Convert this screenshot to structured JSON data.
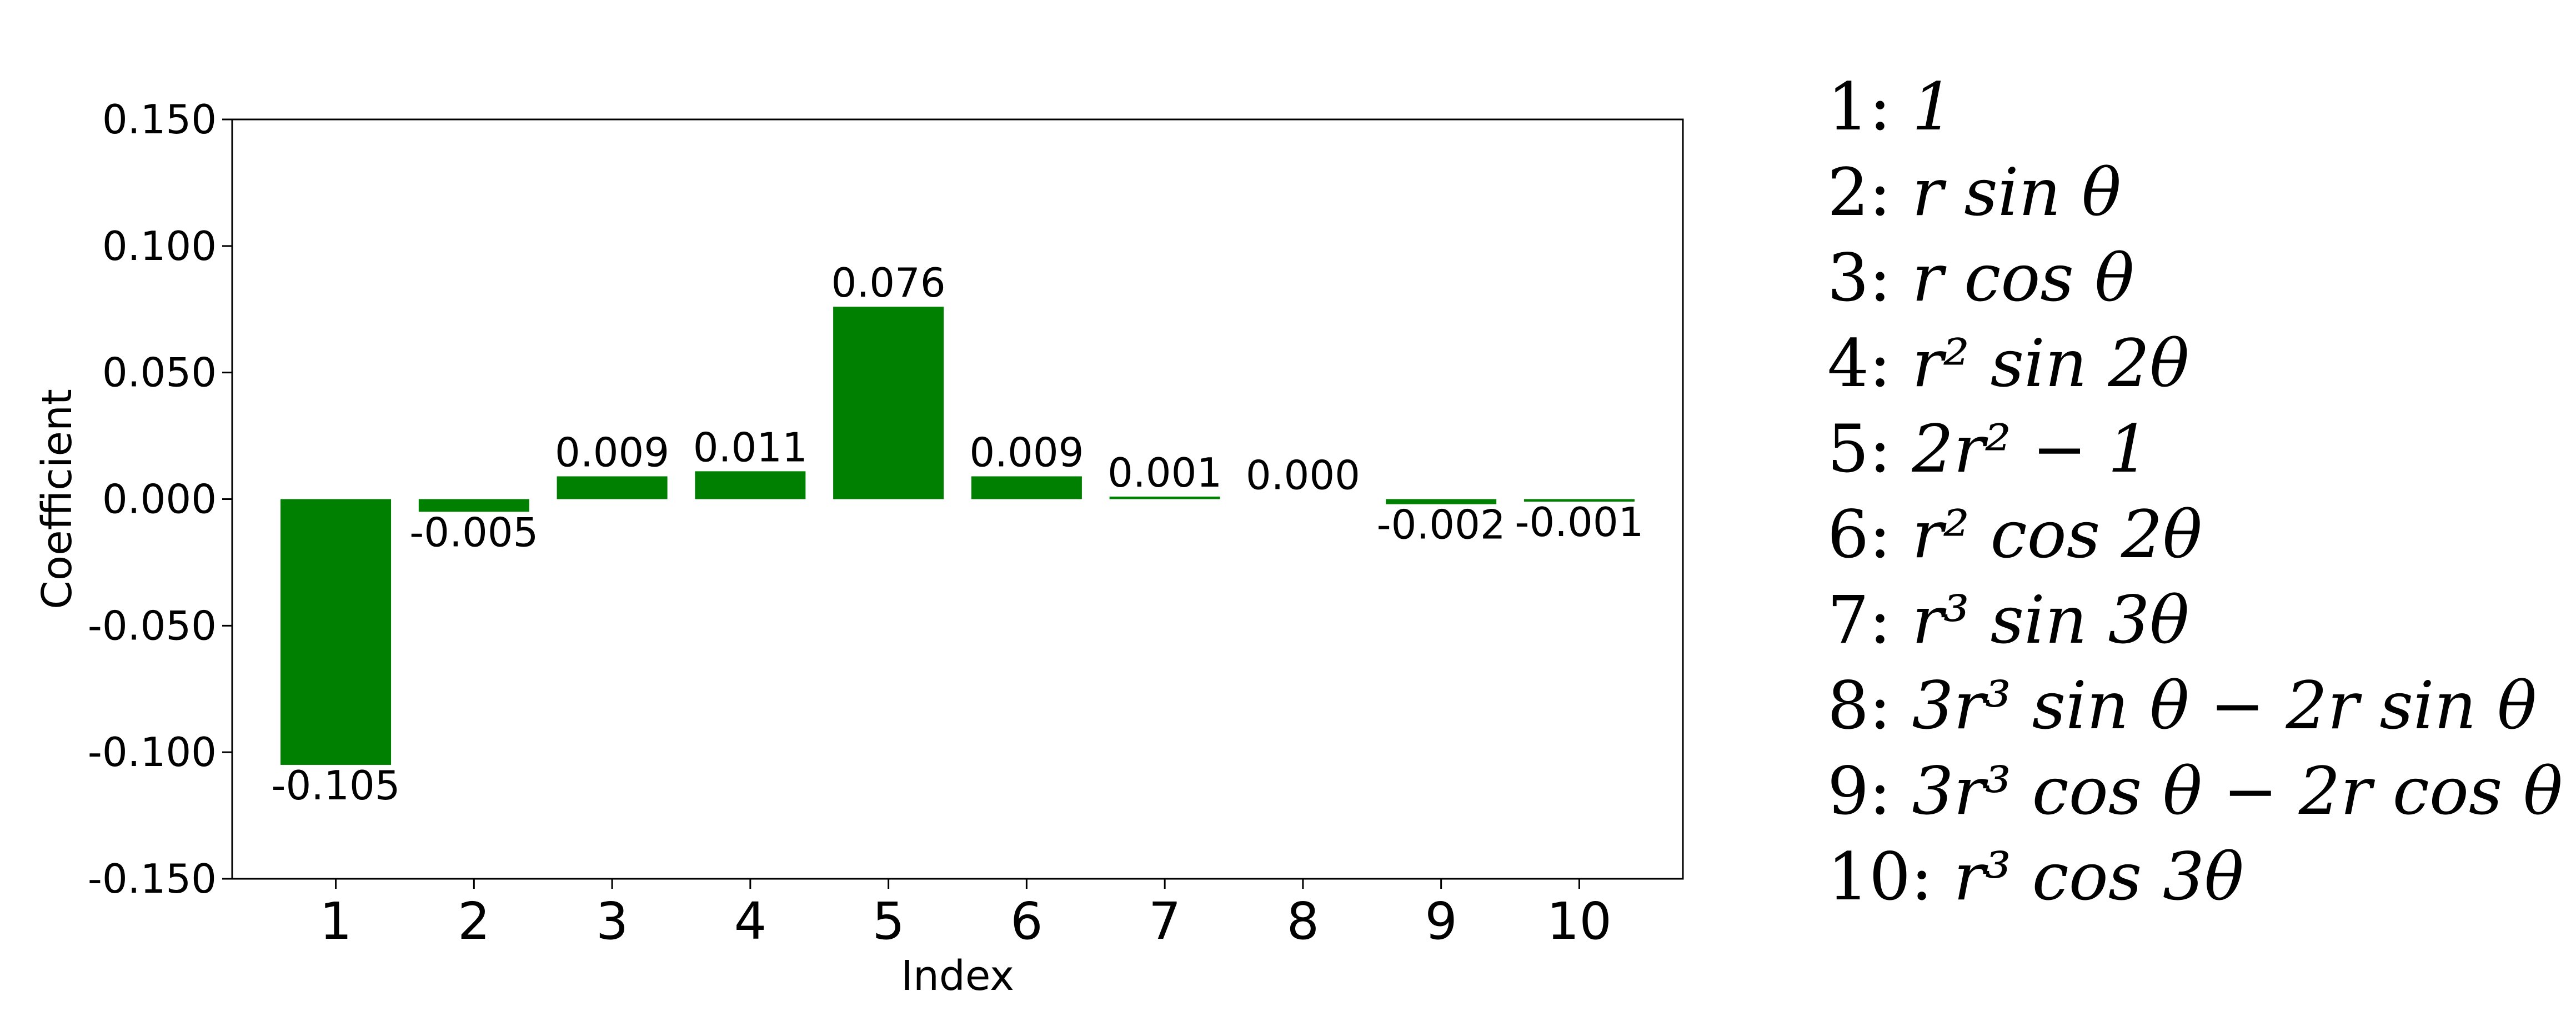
{
  "chart_data": {
    "type": "bar",
    "categories": [
      "1",
      "2",
      "3",
      "4",
      "5",
      "6",
      "7",
      "8",
      "9",
      "10"
    ],
    "values": [
      -0.105,
      -0.005,
      0.009,
      0.011,
      0.076,
      0.009,
      0.001,
      0.0,
      -0.002,
      -0.001
    ],
    "value_labels": [
      "-0.105",
      "-0.005",
      "0.009",
      "0.011",
      "0.076",
      "0.009",
      "0.001",
      "0.000",
      "-0.002",
      "-0.001"
    ],
    "xlabel": "Index",
    "ylabel": "Coefficient",
    "ylim": [
      -0.15,
      0.15
    ],
    "yticks": [
      0.15,
      0.1,
      0.05,
      0.0,
      -0.05,
      -0.1,
      -0.15
    ],
    "ytick_labels": [
      "0.150",
      "0.100",
      "0.050",
      "0.000",
      "-0.050",
      "-0.100",
      "-0.150"
    ],
    "grid": false,
    "bar_color": "#008000",
    "legend_placement": "right",
    "legend": [
      {
        "index": "1:",
        "formula": "1"
      },
      {
        "index": "2:",
        "formula": "r sin θ"
      },
      {
        "index": "3:",
        "formula": "r cos θ"
      },
      {
        "index": "4:",
        "formula": "r² sin 2θ"
      },
      {
        "index": "5:",
        "formula": "2r² − 1"
      },
      {
        "index": "6:",
        "formula": "r² cos 2θ"
      },
      {
        "index": "7:",
        "formula": "r³ sin 3θ"
      },
      {
        "index": "8:",
        "formula": "3r³ sin θ − 2r sin θ"
      },
      {
        "index": "9:",
        "formula": "3r³ cos θ − 2r cos θ"
      },
      {
        "index": "10:",
        "formula": "r³ cos 3θ"
      }
    ]
  }
}
